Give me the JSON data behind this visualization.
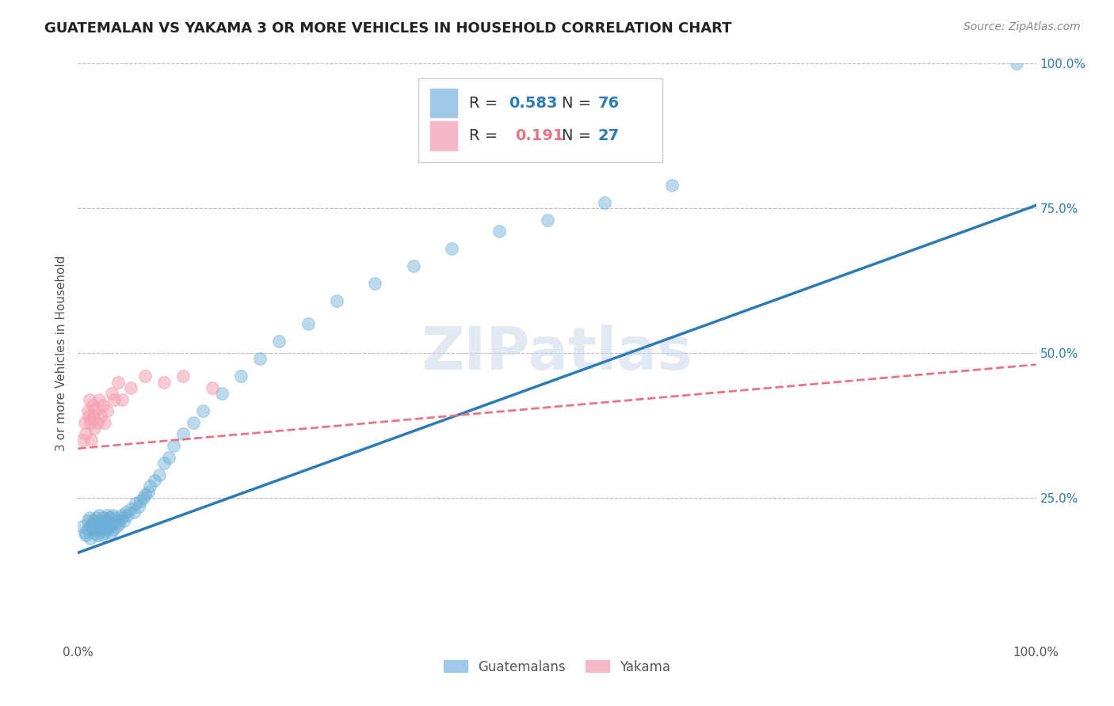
{
  "title": "GUATEMALAN VS YAKAMA 3 OR MORE VEHICLES IN HOUSEHOLD CORRELATION CHART",
  "source": "Source: ZipAtlas.com",
  "ylabel": "3 or more Vehicles in Household",
  "xlim": [
    0,
    1.0
  ],
  "ylim": [
    0,
    1.0
  ],
  "right_yticks": [
    0.25,
    0.5,
    0.75,
    1.0
  ],
  "right_yticklabels": [
    "25.0%",
    "50.0%",
    "75.0%",
    "100.0%"
  ],
  "xtick_labels": [
    "0.0%",
    "100.0%"
  ],
  "watermark": "ZIPatlas",
  "guatemalan_color": "#6baed6",
  "yakama_color": "#f4a0b0",
  "blue_line_color": "#2c7bb6",
  "pink_line_color": "#e8748a",
  "right_tick_color": "#2c7bb6",
  "title_fontsize": 13,
  "source_fontsize": 10,
  "axis_label_fontsize": 11,
  "tick_fontsize": 11,
  "guatemalan_scatter_x": [
    0.005,
    0.007,
    0.008,
    0.01,
    0.01,
    0.012,
    0.013,
    0.013,
    0.015,
    0.015,
    0.016,
    0.017,
    0.018,
    0.019,
    0.02,
    0.02,
    0.021,
    0.022,
    0.022,
    0.023,
    0.024,
    0.025,
    0.025,
    0.026,
    0.027,
    0.028,
    0.029,
    0.03,
    0.03,
    0.031,
    0.032,
    0.033,
    0.034,
    0.035,
    0.036,
    0.037,
    0.038,
    0.04,
    0.041,
    0.043,
    0.045,
    0.046,
    0.048,
    0.05,
    0.052,
    0.055,
    0.058,
    0.06,
    0.063,
    0.065,
    0.068,
    0.07,
    0.073,
    0.075,
    0.08,
    0.085,
    0.09,
    0.095,
    0.1,
    0.11,
    0.12,
    0.13,
    0.15,
    0.17,
    0.19,
    0.21,
    0.24,
    0.27,
    0.31,
    0.35,
    0.39,
    0.44,
    0.49,
    0.55,
    0.62,
    0.98
  ],
  "guatemalan_scatter_y": [
    0.2,
    0.19,
    0.185,
    0.21,
    0.195,
    0.215,
    0.2,
    0.18,
    0.205,
    0.195,
    0.21,
    0.19,
    0.2,
    0.215,
    0.195,
    0.185,
    0.205,
    0.2,
    0.22,
    0.195,
    0.21,
    0.2,
    0.185,
    0.215,
    0.205,
    0.19,
    0.2,
    0.22,
    0.195,
    0.21,
    0.2,
    0.215,
    0.19,
    0.205,
    0.22,
    0.195,
    0.215,
    0.2,
    0.21,
    0.205,
    0.22,
    0.215,
    0.21,
    0.225,
    0.22,
    0.23,
    0.225,
    0.24,
    0.235,
    0.245,
    0.25,
    0.255,
    0.26,
    0.27,
    0.28,
    0.29,
    0.31,
    0.32,
    0.34,
    0.36,
    0.38,
    0.4,
    0.43,
    0.46,
    0.49,
    0.52,
    0.55,
    0.59,
    0.62,
    0.65,
    0.68,
    0.71,
    0.73,
    0.76,
    0.79,
    1.0
  ],
  "yakama_scatter_x": [
    0.005,
    0.007,
    0.008,
    0.01,
    0.011,
    0.012,
    0.013,
    0.014,
    0.015,
    0.016,
    0.017,
    0.018,
    0.02,
    0.022,
    0.024,
    0.026,
    0.028,
    0.03,
    0.035,
    0.038,
    0.042,
    0.046,
    0.055,
    0.07,
    0.09,
    0.11,
    0.14
  ],
  "yakama_scatter_y": [
    0.35,
    0.38,
    0.36,
    0.4,
    0.39,
    0.42,
    0.38,
    0.35,
    0.41,
    0.39,
    0.37,
    0.4,
    0.38,
    0.42,
    0.39,
    0.41,
    0.38,
    0.4,
    0.43,
    0.42,
    0.45,
    0.42,
    0.44,
    0.46,
    0.45,
    0.46,
    0.44
  ],
  "blue_line_x0": 0.0,
  "blue_line_y0": 0.155,
  "blue_line_x1": 1.0,
  "blue_line_y1": 0.755,
  "pink_line_x0": 0.0,
  "pink_line_y0": 0.335,
  "pink_line_x1": 1.0,
  "pink_line_y1": 0.48
}
